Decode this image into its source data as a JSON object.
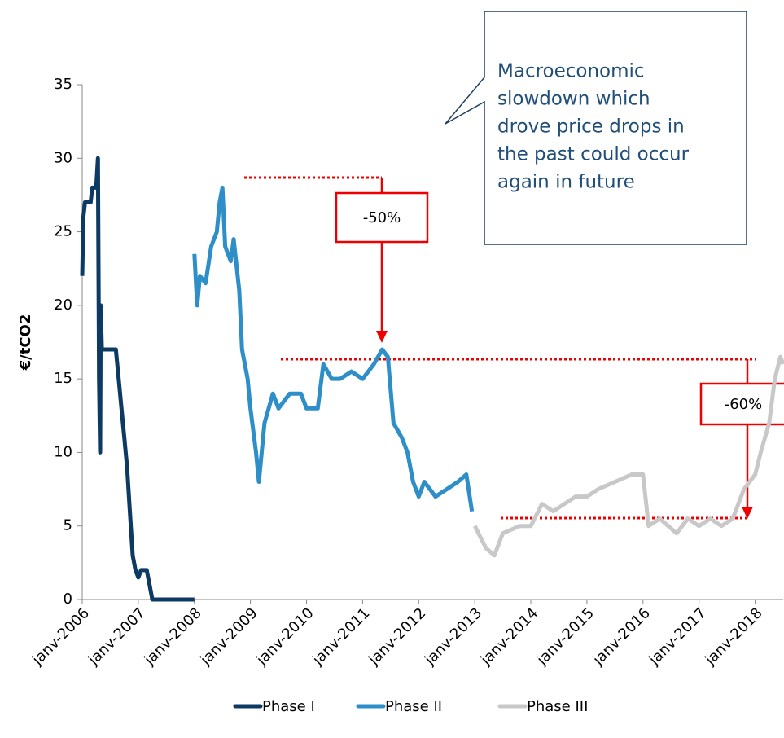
{
  "chart_data": {
    "type": "line",
    "ylabel": "€/tCO2",
    "ylim": [
      0,
      35
    ],
    "yticks": [
      0,
      5,
      10,
      15,
      20,
      25,
      30,
      35
    ],
    "xlim": [
      2006,
      2018.5
    ],
    "xticks": [
      {
        "value": 2006,
        "label": "janv-2006"
      },
      {
        "value": 2007,
        "label": "janv-2007"
      },
      {
        "value": 2008,
        "label": "janv-2008"
      },
      {
        "value": 2009,
        "label": "janv-2009"
      },
      {
        "value": 2010,
        "label": "janv-2010"
      },
      {
        "value": 2011,
        "label": "janv-2011"
      },
      {
        "value": 2012,
        "label": "janv-2012"
      },
      {
        "value": 2013,
        "label": "janv-2013"
      },
      {
        "value": 2014,
        "label": "janv-2014"
      },
      {
        "value": 2015,
        "label": "janv-2015"
      },
      {
        "value": 2016,
        "label": "janv-2016"
      },
      {
        "value": 2017,
        "label": "janv-2017"
      },
      {
        "value": 2018,
        "label": "janv-2018"
      }
    ],
    "legend": "bottom",
    "series": [
      {
        "name": "Phase I",
        "color": "#0c3a63",
        "x": [
          2006.0,
          2006.02,
          2006.05,
          2006.15,
          2006.18,
          2006.25,
          2006.28,
          2006.3,
          2006.32,
          2006.33,
          2006.35,
          2006.6,
          2006.65,
          2006.7,
          2006.75,
          2006.8,
          2006.85,
          2006.9,
          2006.95,
          2007.0,
          2007.05,
          2007.15,
          2007.2,
          2007.25,
          2008.0
        ],
        "values": [
          22,
          26,
          27,
          27,
          28,
          28,
          30,
          15,
          10,
          20,
          17,
          17,
          15,
          13,
          11,
          9,
          6,
          3,
          2,
          1.5,
          2,
          2,
          1,
          0,
          0
        ]
      },
      {
        "name": "Phase II",
        "color": "#2e8fc8",
        "x": [
          2008.0,
          2008.05,
          2008.1,
          2008.2,
          2008.3,
          2008.4,
          2008.45,
          2008.5,
          2008.55,
          2008.65,
          2008.7,
          2008.8,
          2008.85,
          2008.95,
          2009.0,
          2009.1,
          2009.15,
          2009.25,
          2009.4,
          2009.5,
          2009.7,
          2009.9,
          2010.0,
          2010.2,
          2010.3,
          2010.45,
          2010.6,
          2010.8,
          2011.0,
          2011.2,
          2011.35,
          2011.45,
          2011.55,
          2011.7,
          2011.8,
          2011.9,
          2012.0,
          2012.1,
          2012.3,
          2012.5,
          2012.7,
          2012.85,
          2012.95
        ],
        "values": [
          23.5,
          20,
          22,
          21.5,
          24,
          25,
          27,
          28,
          24,
          23,
          24.5,
          21,
          17,
          15,
          13,
          10,
          8,
          12,
          14,
          13,
          14,
          14,
          13,
          13,
          16,
          15,
          15,
          15.5,
          15,
          16,
          17,
          16.5,
          12,
          11,
          10,
          8,
          7,
          8,
          7,
          7.5,
          8,
          8.5,
          6
        ]
      },
      {
        "name": "Phase III",
        "color": "#c8c8c8",
        "x": [
          2013.0,
          2013.2,
          2013.35,
          2013.5,
          2013.8,
          2014.0,
          2014.2,
          2014.4,
          2014.6,
          2014.8,
          2015.0,
          2015.2,
          2015.5,
          2015.8,
          2016.0,
          2016.1,
          2016.3,
          2016.6,
          2016.8,
          2017.0,
          2017.2,
          2017.4,
          2017.6,
          2017.8,
          2018.0,
          2018.1,
          2018.25,
          2018.35,
          2018.45,
          2018.5
        ],
        "values": [
          5,
          3.5,
          3,
          4.5,
          5,
          5,
          6.5,
          6,
          6.5,
          7,
          7,
          7.5,
          8,
          8.5,
          8.5,
          5,
          5.5,
          4.5,
          5.5,
          5,
          5.5,
          5,
          5.5,
          7.5,
          8.5,
          10,
          12,
          15,
          16.5,
          16
        ]
      }
    ],
    "annotations": {
      "callout": [
        "Macroeconomic",
        "slowdown which",
        "drove price drops in",
        "the past could occur",
        "again in future"
      ],
      "drop1": "-50%",
      "drop2": "-60%"
    }
  }
}
